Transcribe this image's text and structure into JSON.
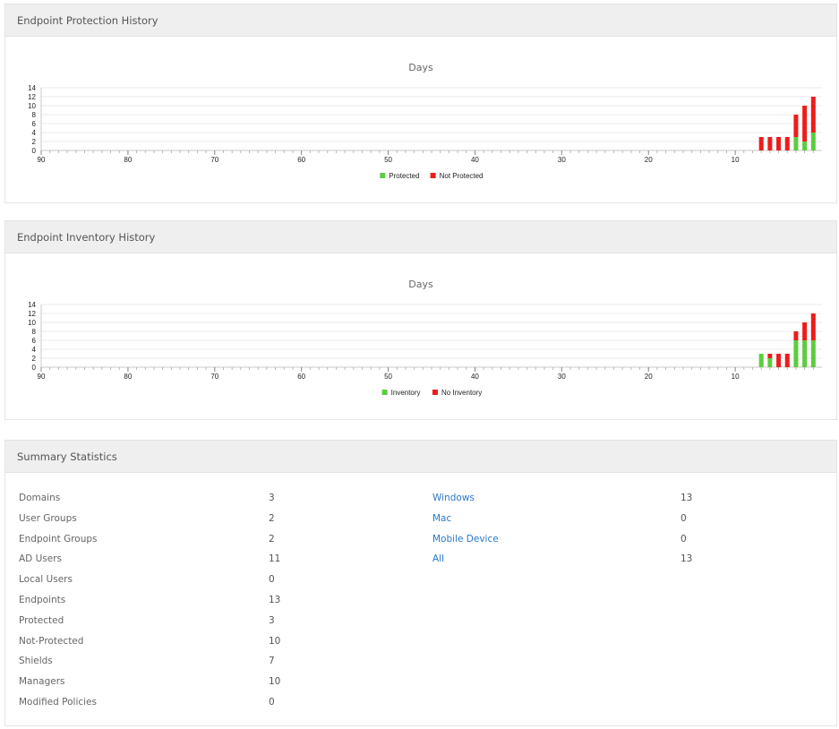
{
  "panels": {
    "protection": {
      "title": "Endpoint Protection History",
      "chart_data": {
        "type": "bar",
        "title": "Days",
        "x_ticks": [
          90,
          80,
          70,
          60,
          50,
          40,
          30,
          20,
          10
        ],
        "y_ticks": [
          0,
          2,
          4,
          6,
          8,
          10,
          12,
          14
        ],
        "ylim": [
          0,
          14
        ],
        "xlim": [
          90,
          0
        ],
        "days": [
          7,
          6,
          5,
          4,
          3,
          2,
          1
        ],
        "series": [
          {
            "name": "Protected",
            "color": "#5ccd3e",
            "values": [
              0,
              0,
              0,
              0,
              3,
              2,
              4
            ]
          },
          {
            "name": "Not Protected",
            "color": "#ee1c1c",
            "values": [
              3,
              3,
              3,
              3,
              5,
              8,
              8
            ]
          }
        ],
        "stacked": true,
        "legend": "bottom-center",
        "grid": true
      }
    },
    "inventory": {
      "title": "Endpoint Inventory History",
      "chart_data": {
        "type": "bar",
        "title": "Days",
        "x_ticks": [
          90,
          80,
          70,
          60,
          50,
          40,
          30,
          20,
          10
        ],
        "y_ticks": [
          0,
          2,
          4,
          6,
          8,
          10,
          12,
          14
        ],
        "ylim": [
          0,
          14
        ],
        "xlim": [
          90,
          0
        ],
        "days": [
          7,
          6,
          5,
          4,
          3,
          2,
          1
        ],
        "series": [
          {
            "name": "Inventory",
            "color": "#5ccd3e",
            "values": [
              3,
              2,
              0,
              0,
              6,
              6,
              6
            ]
          },
          {
            "name": "No Inventory",
            "color": "#ee1c1c",
            "values": [
              0,
              1,
              3,
              3,
              2,
              4,
              6
            ]
          }
        ],
        "stacked": true,
        "legend": "bottom-center",
        "grid": true
      }
    },
    "summary": {
      "title": "Summary Statistics",
      "left": [
        {
          "label": "Domains",
          "value": "3"
        },
        {
          "label": "User Groups",
          "value": "2"
        },
        {
          "label": "Endpoint Groups",
          "value": "2"
        },
        {
          "label": "AD Users",
          "value": "11"
        },
        {
          "label": "Local Users",
          "value": "0"
        },
        {
          "label": "Endpoints",
          "value": "13"
        },
        {
          "label": "Protected",
          "value": "3"
        },
        {
          "label": "Not-Protected",
          "value": "10"
        },
        {
          "label": "Shields",
          "value": "7"
        },
        {
          "label": "Managers",
          "value": "10"
        },
        {
          "label": "Modified Policies",
          "value": "0"
        }
      ],
      "right": [
        {
          "label": "Windows",
          "value": "13"
        },
        {
          "label": "Mac",
          "value": "0"
        },
        {
          "label": "Mobile Device",
          "value": "0"
        },
        {
          "label": "All",
          "value": "13"
        }
      ]
    }
  }
}
